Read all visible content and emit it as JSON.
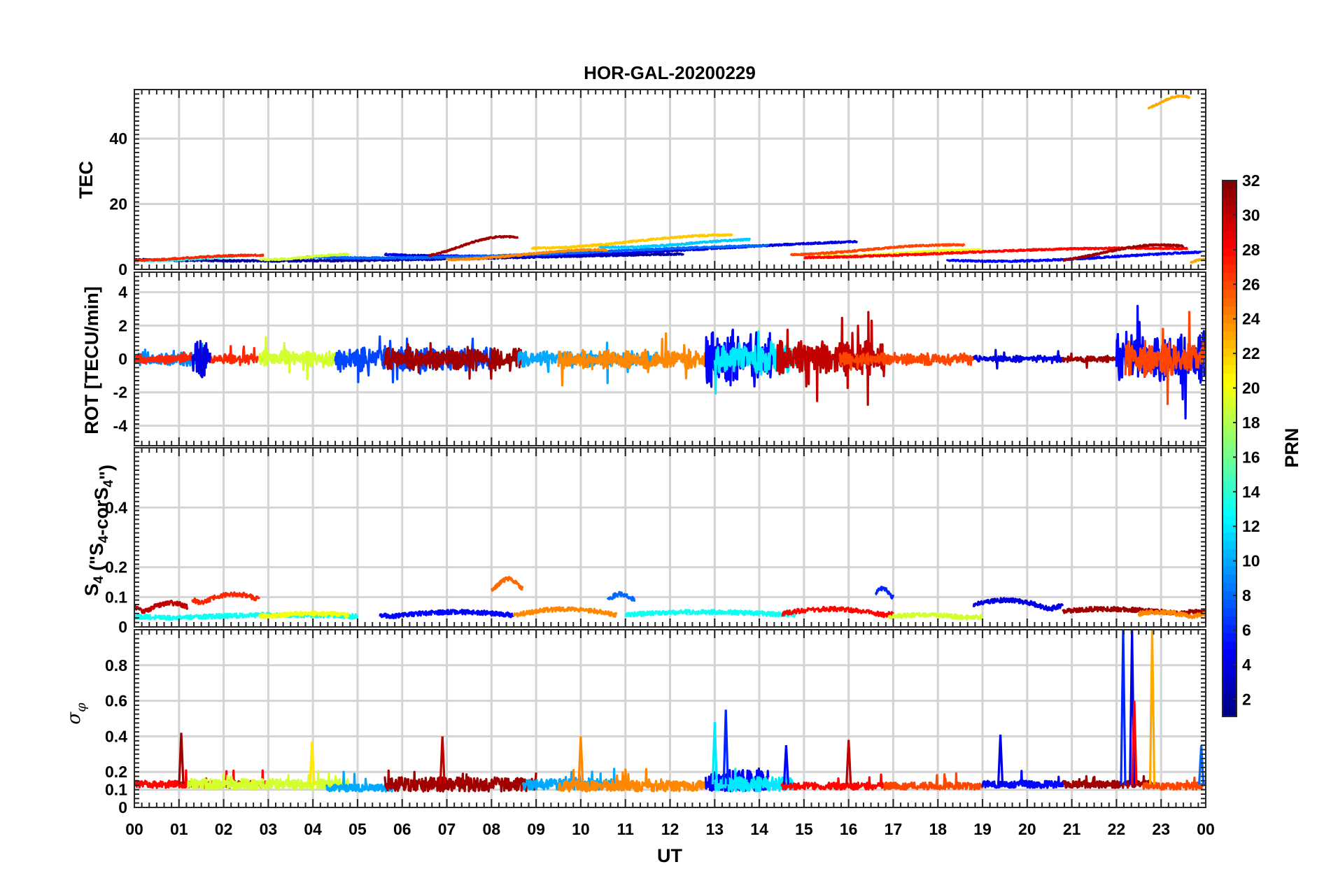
{
  "chart_data": {
    "type": "line",
    "title": "HOR-GAL-20200229",
    "xlabel": "UT",
    "x_range_hours": [
      0,
      24
    ],
    "x_tick_labels": [
      "00",
      "01",
      "02",
      "03",
      "04",
      "05",
      "06",
      "07",
      "08",
      "09",
      "10",
      "11",
      "12",
      "13",
      "14",
      "15",
      "16",
      "17",
      "18",
      "19",
      "20",
      "21",
      "22",
      "23",
      "00"
    ],
    "grid": true,
    "colorbar": {
      "label": "PRN",
      "range": [
        1,
        32
      ],
      "ticks": [
        "2",
        "4",
        "6",
        "8",
        "10",
        "12",
        "14",
        "16",
        "18",
        "20",
        "22",
        "24",
        "26",
        "28",
        "30",
        "32"
      ],
      "colormap": "jet"
    },
    "panels": [
      {
        "id": "tec",
        "ylabel": "TEC",
        "ylim": [
          0,
          55
        ],
        "yticks": [
          "0",
          "20",
          "40"
        ],
        "traces": [
          {
            "prn": 2,
            "t0": 0.0,
            "t1": 12.3,
            "kind": "tec",
            "base": 3.8,
            "amp": 1.2
          },
          {
            "prn": 4,
            "t0": 5.6,
            "t1": 16.2,
            "kind": "tec",
            "base": 6.5,
            "amp": 2.5
          },
          {
            "prn": 5,
            "t0": 18.2,
            "t1": 23.9,
            "kind": "tec",
            "base": 4.0,
            "amp": 1.5
          },
          {
            "prn": 8,
            "t0": 3.8,
            "t1": 14.2,
            "kind": "tec",
            "base": 5.5,
            "amp": 2.0
          },
          {
            "prn": 11,
            "t0": 10.4,
            "t1": 13.8,
            "kind": "tec",
            "base": 8.0,
            "amp": 1.2
          },
          {
            "prn": 13,
            "t0": 0.2,
            "t1": 2.6,
            "kind": "tec",
            "base": 3.5,
            "amp": 0.8
          },
          {
            "prn": 19,
            "t0": 2.8,
            "t1": 4.8,
            "kind": "tec",
            "base": 3.8,
            "amp": 0.8
          },
          {
            "prn": 20,
            "t0": 15.3,
            "t1": 19.0,
            "kind": "tec",
            "base": 5.0,
            "amp": 1.0
          },
          {
            "prn": 22,
            "t0": 8.9,
            "t1": 13.4,
            "kind": "tec",
            "base": 8.5,
            "amp": 2.0
          },
          {
            "prn": 24,
            "t0": 7.0,
            "t1": 10.6,
            "kind": "tec",
            "base": 4.5,
            "amp": 1.5
          },
          {
            "prn": 26,
            "t0": 14.7,
            "t1": 18.6,
            "kind": "tec",
            "base": 6.0,
            "amp": 1.5
          },
          {
            "prn": 27,
            "t0": 0.0,
            "t1": 2.9,
            "kind": "tec",
            "base": 3.5,
            "amp": 0.8
          },
          {
            "prn": 28,
            "t0": 15.0,
            "t1": 23.6,
            "kind": "tec",
            "base": 5.0,
            "amp": 1.5
          },
          {
            "prn": 31,
            "t0": 6.6,
            "t1": 8.6,
            "kind": "tec",
            "base": 7.0,
            "amp": 3.0
          },
          {
            "prn": 31,
            "t0": 20.8,
            "t1": 23.5,
            "kind": "tec",
            "base": 5.0,
            "amp": 2.5
          },
          {
            "prn": 23,
            "t0": 22.7,
            "t1": 23.65,
            "kind": "tec",
            "base": 51.0,
            "amp": 2.0
          },
          {
            "prn": 23,
            "t0": 23.65,
            "t1": 24.0,
            "kind": "tec",
            "base": 2.5,
            "amp": 0.5
          }
        ]
      },
      {
        "id": "rot",
        "ylabel": "ROT [TECU/min]",
        "ylim": [
          -5.2,
          5.2
        ],
        "yticks": [
          "-4",
          "-2",
          "0",
          "2",
          "4"
        ],
        "traces": [
          {
            "prn": 9,
            "t0": 0.0,
            "t1": 1.6,
            "kind": "rot",
            "amp": 0.45
          },
          {
            "prn": 27,
            "t0": 0.0,
            "t1": 2.8,
            "kind": "rot",
            "amp": 0.3
          },
          {
            "prn": 4,
            "t0": 1.3,
            "t1": 1.7,
            "kind": "rot",
            "amp": 1.2
          },
          {
            "prn": 19,
            "t0": 2.8,
            "t1": 4.8,
            "kind": "rot",
            "amp": 0.5
          },
          {
            "prn": 7,
            "t0": 4.5,
            "t1": 8.0,
            "kind": "rot",
            "amp": 0.8
          },
          {
            "prn": 31,
            "t0": 5.6,
            "t1": 8.7,
            "kind": "rot",
            "amp": 0.7
          },
          {
            "prn": 10,
            "t0": 8.6,
            "t1": 12.0,
            "kind": "rot",
            "amp": 0.5
          },
          {
            "prn": 24,
            "t0": 9.5,
            "t1": 13.0,
            "kind": "rot",
            "amp": 0.6
          },
          {
            "prn": 5,
            "t0": 12.8,
            "t1": 14.3,
            "kind": "rot",
            "amp": 1.8
          },
          {
            "prn": 12,
            "t0": 13.0,
            "t1": 14.8,
            "kind": "rot",
            "amp": 1.0
          },
          {
            "prn": 30,
            "t0": 14.4,
            "t1": 16.8,
            "kind": "rot",
            "amp": 1.1
          },
          {
            "prn": 26,
            "t0": 15.8,
            "t1": 18.8,
            "kind": "rot",
            "amp": 0.4
          },
          {
            "prn": 4,
            "t0": 18.8,
            "t1": 20.8,
            "kind": "rot",
            "amp": 0.2
          },
          {
            "prn": 31,
            "t0": 20.8,
            "t1": 22.0,
            "kind": "rot",
            "amp": 0.2
          },
          {
            "prn": 5,
            "t0": 22.0,
            "t1": 24.0,
            "kind": "rot",
            "amp": 1.5
          },
          {
            "prn": 26,
            "t0": 22.2,
            "t1": 24.0,
            "kind": "rot",
            "amp": 1.1
          }
        ]
      },
      {
        "id": "s4",
        "ylabel": "S4 (\"S4-corS4\")",
        "ylim": [
          0,
          0.6
        ],
        "yticks": [
          "0",
          "0.1",
          "0.2",
          "0.4"
        ],
        "traces": [
          {
            "prn": 30,
            "t0": 0.0,
            "t1": 1.2,
            "kind": "s4",
            "base": 0.05,
            "amp": 0.03
          },
          {
            "prn": 13,
            "t0": 0.0,
            "t1": 5.0,
            "kind": "s4",
            "base": 0.03,
            "amp": 0.01
          },
          {
            "prn": 27,
            "t0": 1.3,
            "t1": 2.8,
            "kind": "s4",
            "base": 0.08,
            "amp": 0.03
          },
          {
            "prn": 20,
            "t0": 2.8,
            "t1": 4.8,
            "kind": "s4",
            "base": 0.035,
            "amp": 0.01
          },
          {
            "prn": 5,
            "t0": 5.5,
            "t1": 8.5,
            "kind": "s4",
            "base": 0.035,
            "amp": 0.015
          },
          {
            "prn": 25,
            "t0": 8.0,
            "t1": 8.7,
            "kind": "s4",
            "base": 0.12,
            "amp": 0.04
          },
          {
            "prn": 24,
            "t0": 8.5,
            "t1": 10.8,
            "kind": "s4",
            "base": 0.04,
            "amp": 0.02
          },
          {
            "prn": 8,
            "t0": 10.6,
            "t1": 11.2,
            "kind": "s4",
            "base": 0.09,
            "amp": 0.02
          },
          {
            "prn": 13,
            "t0": 11.0,
            "t1": 14.8,
            "kind": "s4",
            "base": 0.04,
            "amp": 0.01
          },
          {
            "prn": 28,
            "t0": 14.5,
            "t1": 17.0,
            "kind": "s4",
            "base": 0.04,
            "amp": 0.02
          },
          {
            "prn": 6,
            "t0": 16.6,
            "t1": 17.0,
            "kind": "s4",
            "base": 0.1,
            "amp": 0.03
          },
          {
            "prn": 19,
            "t0": 16.9,
            "t1": 19.0,
            "kind": "s4",
            "base": 0.03,
            "amp": 0.01
          },
          {
            "prn": 4,
            "t0": 18.8,
            "t1": 20.8,
            "kind": "s4",
            "base": 0.06,
            "amp": 0.03
          },
          {
            "prn": 31,
            "t0": 20.8,
            "t1": 24.0,
            "kind": "s4",
            "base": 0.045,
            "amp": 0.015
          },
          {
            "prn": 24,
            "t0": 22.5,
            "t1": 24.0,
            "kind": "s4",
            "base": 0.035,
            "amp": 0.015
          }
        ]
      },
      {
        "id": "sigma",
        "ylabel": "σφ",
        "ylim": [
          0,
          1.0
        ],
        "yticks": [
          "0",
          "0.1",
          "0.2",
          "0.4",
          "0.6",
          "0.8"
        ],
        "traces": [
          {
            "prn": 28,
            "t0": 0.0,
            "t1": 3.0,
            "kind": "sig",
            "base": 0.13,
            "amp": 0.02
          },
          {
            "prn": 19,
            "t0": 1.2,
            "t1": 4.8,
            "kind": "sig",
            "base": 0.13,
            "amp": 0.03
          },
          {
            "prn": 10,
            "t0": 4.3,
            "t1": 5.8,
            "kind": "sig",
            "base": 0.11,
            "amp": 0.02
          },
          {
            "prn": 31,
            "t0": 5.6,
            "t1": 9.0,
            "kind": "sig",
            "base": 0.13,
            "amp": 0.04
          },
          {
            "prn": 10,
            "t0": 8.7,
            "t1": 11.0,
            "kind": "sig",
            "base": 0.13,
            "amp": 0.03
          },
          {
            "prn": 24,
            "t0": 9.5,
            "t1": 12.8,
            "kind": "sig",
            "base": 0.12,
            "amp": 0.03
          },
          {
            "prn": 5,
            "t0": 12.8,
            "t1": 14.2,
            "kind": "sig",
            "base": 0.15,
            "amp": 0.06
          },
          {
            "prn": 12,
            "t0": 13.0,
            "t1": 14.8,
            "kind": "sig",
            "base": 0.13,
            "amp": 0.04
          },
          {
            "prn": 28,
            "t0": 14.5,
            "t1": 16.8,
            "kind": "sig",
            "base": 0.12,
            "amp": 0.02
          },
          {
            "prn": 26,
            "t0": 16.8,
            "t1": 19.0,
            "kind": "sig",
            "base": 0.12,
            "amp": 0.02
          },
          {
            "prn": 5,
            "t0": 19.0,
            "t1": 20.8,
            "kind": "sig",
            "base": 0.13,
            "amp": 0.02
          },
          {
            "prn": 31,
            "t0": 20.8,
            "t1": 22.8,
            "kind": "sig",
            "base": 0.13,
            "amp": 0.02
          },
          {
            "prn": 26,
            "t0": 22.6,
            "t1": 24.0,
            "kind": "sig",
            "base": 0.12,
            "amp": 0.02
          }
        ],
        "spikes": [
          {
            "prn": 31,
            "t": 1.05,
            "peak": 0.42
          },
          {
            "prn": 21,
            "t": 3.98,
            "peak": 0.37
          },
          {
            "prn": 30,
            "t": 6.9,
            "peak": 0.4
          },
          {
            "prn": 24,
            "t": 10.0,
            "peak": 0.4
          },
          {
            "prn": 12,
            "t": 13.0,
            "peak": 0.48
          },
          {
            "prn": 6,
            "t": 13.25,
            "peak": 0.55
          },
          {
            "prn": 5,
            "t": 14.6,
            "peak": 0.35
          },
          {
            "prn": 30,
            "t": 16.0,
            "peak": 0.38
          },
          {
            "prn": 4,
            "t": 19.4,
            "peak": 0.41
          },
          {
            "prn": 6,
            "t": 22.15,
            "peak": 1.0
          },
          {
            "prn": 4,
            "t": 22.35,
            "peak": 1.0
          },
          {
            "prn": 28,
            "t": 22.4,
            "peak": 0.6
          },
          {
            "prn": 23,
            "t": 22.8,
            "peak": 1.0
          },
          {
            "prn": 8,
            "t": 23.9,
            "peak": 0.35
          }
        ]
      }
    ]
  }
}
